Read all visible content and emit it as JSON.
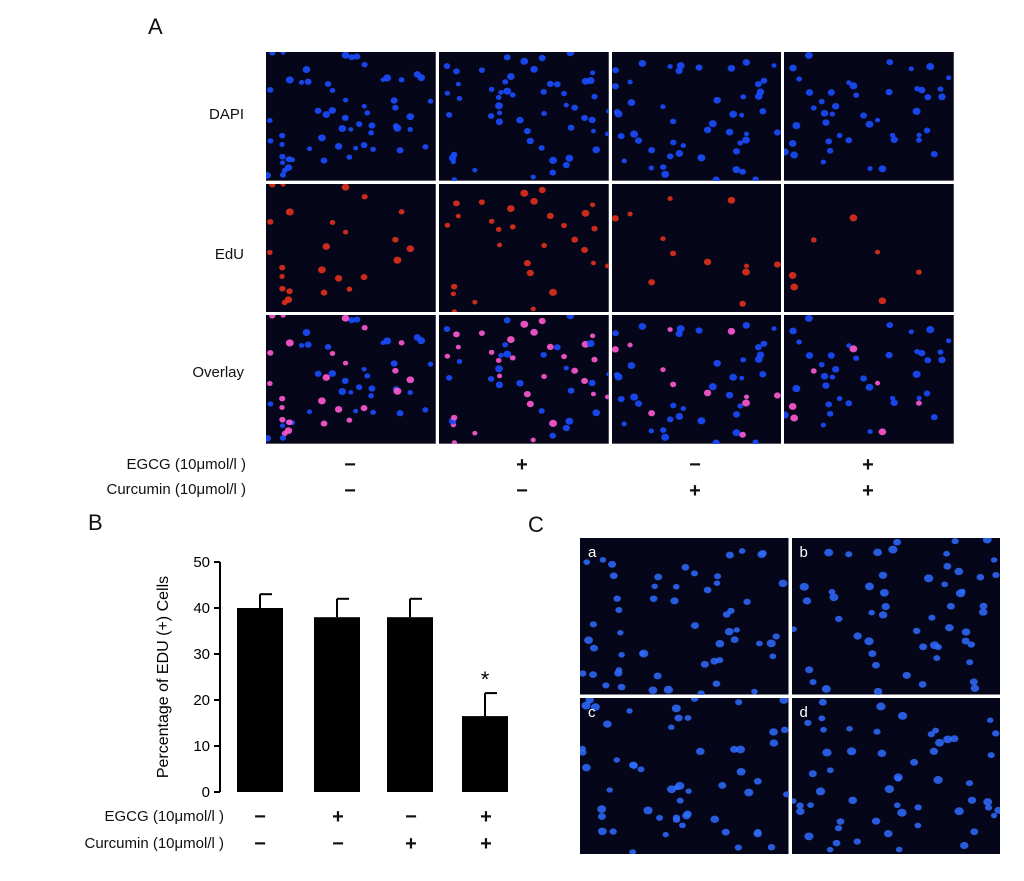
{
  "panels": {
    "A": "A",
    "B": "B",
    "C": "C"
  },
  "panel_a": {
    "rows": [
      {
        "label": "DAPI",
        "stain": "dapi"
      },
      {
        "label": "EdU",
        "stain": "edu"
      },
      {
        "label": "Overlay",
        "stain": "overlay"
      }
    ],
    "conditions": [
      {
        "egcg": "−",
        "curcumin": "−"
      },
      {
        "egcg": "+",
        "curcumin": "−"
      },
      {
        "egcg": "−",
        "curcumin": "+"
      },
      {
        "egcg": "+",
        "curcumin": "+"
      }
    ],
    "egcg_label": "EGCG (10μmol/l )",
    "curcumin_label": "Curcumin (10μmol/l )",
    "colors": {
      "dapi": "#1b4dff",
      "edu": "#e0301c",
      "overlay_pink": "#ff5ad2",
      "background": "#06061a"
    }
  },
  "chart_data": {
    "type": "bar",
    "categories": [
      "1",
      "2",
      "3",
      "4"
    ],
    "values": [
      40,
      38,
      38,
      16.5
    ],
    "errors": [
      3,
      4,
      4,
      5
    ],
    "annotations": [
      "",
      "",
      "",
      "*"
    ],
    "ylabel": "Percentage of EDU (+) Cells",
    "ylim": [
      0,
      50
    ],
    "yticks": [
      0,
      10,
      20,
      30,
      40,
      50
    ],
    "egcg": [
      "−",
      "+",
      "−",
      "+"
    ],
    "curcumin": [
      "−",
      "−",
      "+",
      "+"
    ],
    "egcg_label": "EGCG (10μmol/l )",
    "curcumin_label": "Curcumin (10μmol/l )",
    "bar_color": "#000000"
  },
  "panel_c": {
    "tiles": [
      "a",
      "b",
      "c",
      "d"
    ]
  }
}
